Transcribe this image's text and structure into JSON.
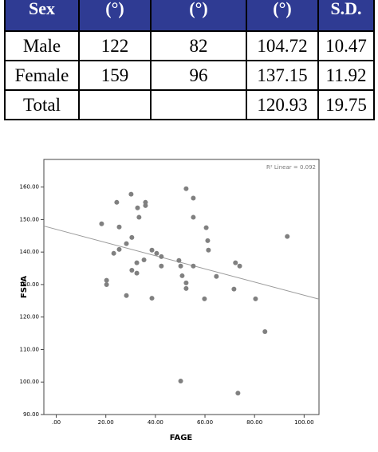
{
  "table": {
    "header": [
      "Sex",
      "(°)",
      "(°)",
      "(°)",
      "S.D."
    ],
    "rows": [
      [
        "Male",
        "122",
        "82",
        "104.72",
        "10.47"
      ],
      [
        "Female",
        "159",
        "96",
        "137.15",
        "11.92"
      ],
      [
        "Total",
        null,
        null,
        "120.93",
        "19.75"
      ]
    ]
  },
  "chart_data": {
    "type": "scatter",
    "xlabel": "FAGE",
    "ylabel": "FSPA",
    "annotation": "R² Linear = 0.092",
    "color": "#808080",
    "x": [
      18.3,
      20.3,
      20.3,
      23.2,
      24.4,
      25.4,
      25.4,
      28.3,
      28.3,
      30.2,
      30.5,
      30.5,
      32.8,
      33.4,
      32.5,
      32.5,
      36,
      36,
      35.4,
      38.6,
      38.6,
      40.5,
      42.4,
      42.4,
      49.5,
      50.2,
      50.8,
      52.4,
      52.4,
      52.4,
      55.3,
      55.3,
      55.3,
      50.2,
      59.8,
      60.5,
      61.1,
      61.4,
      64.6,
      71.7,
      72.3,
      74,
      73.3,
      80.4,
      84.2,
      93.2
    ],
    "y": [
      148.7,
      131.3,
      130,
      139.6,
      155.3,
      147.7,
      140.8,
      126.6,
      142.6,
      157.8,
      144.5,
      134.4,
      153.6,
      150.7,
      136.7,
      133.5,
      155.3,
      154.3,
      137.6,
      125.8,
      140.6,
      139.6,
      138.6,
      135.7,
      137.4,
      135.7,
      132.7,
      130.5,
      128.8,
      159.5,
      156.6,
      150.7,
      135.7,
      100.3,
      125.6,
      147.5,
      143.5,
      140.6,
      132.5,
      128.6,
      136.7,
      135.7,
      96.6,
      125.6,
      115.5,
      144.8
    ],
    "fit_line": {
      "x": [
        -5,
        106
      ],
      "y": [
        148,
        125.5
      ],
      "color": "#999999"
    },
    "xlim": [
      -5,
      106
    ],
    "ylim": [
      90,
      168.5
    ],
    "xticks": [
      {
        "value": 0,
        "label": ".00"
      },
      {
        "value": 20,
        "label": "20.00"
      },
      {
        "value": 40,
        "label": "40.00"
      },
      {
        "value": 60,
        "label": "60.00"
      },
      {
        "value": 80,
        "label": "80.00"
      },
      {
        "value": 100,
        "label": "100.00"
      }
    ],
    "yticks": [
      {
        "value": 90,
        "label": "90.00"
      },
      {
        "value": 100,
        "label": "100.00"
      },
      {
        "value": 110,
        "label": "110.00"
      },
      {
        "value": 120,
        "label": "120.00"
      },
      {
        "value": 130,
        "label": "130.00"
      },
      {
        "value": 140,
        "label": "140.00"
      },
      {
        "value": 150,
        "label": "150.00"
      },
      {
        "value": 160,
        "label": "160.00"
      }
    ]
  }
}
